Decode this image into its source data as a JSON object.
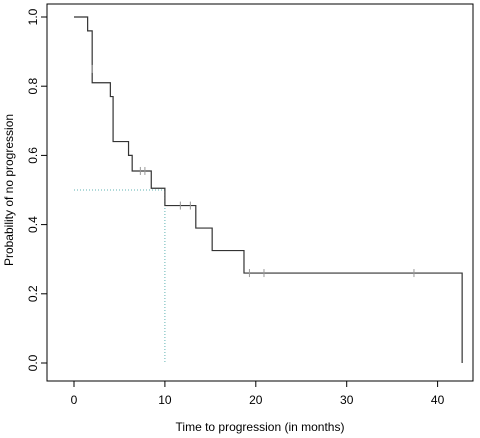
{
  "chart_data": {
    "type": "line",
    "title": "",
    "xlabel": "Time to progression (in months)",
    "ylabel": "Probability of no progression",
    "xlim": [
      0,
      43
    ],
    "ylim": [
      0,
      1
    ],
    "x_ticks": [
      0,
      10,
      20,
      30,
      40
    ],
    "y_ticks": [
      0.0,
      0.2,
      0.4,
      0.6,
      0.8,
      1.0
    ],
    "x_tick_labels": [
      "0",
      "10",
      "20",
      "30",
      "40"
    ],
    "y_tick_labels": [
      "0.0",
      "0.2",
      "0.4",
      "0.6",
      "0.8",
      "1.0"
    ],
    "grid": false,
    "colors": {
      "curve": "#333333",
      "median_line": "#5fb3b3",
      "censor": "#999999"
    },
    "series": [
      {
        "x": [
          0,
          1.5,
          2.0,
          4.0,
          4.3,
          6.0,
          6.4,
          8.5,
          10.0,
          13.4,
          15.2,
          18.7,
          42.7,
          42.7
        ],
        "y": [
          1.0,
          0.96,
          0.81,
          0.77,
          0.64,
          0.6,
          0.555,
          0.505,
          0.455,
          0.39,
          0.325,
          0.26,
          0.26,
          0.0
        ]
      }
    ],
    "censored_points": [
      {
        "x": 2.0,
        "y": 0.85
      },
      {
        "x": 7.3,
        "y": 0.555
      },
      {
        "x": 7.8,
        "y": 0.555
      },
      {
        "x": 11.7,
        "y": 0.455
      },
      {
        "x": 12.8,
        "y": 0.455
      },
      {
        "x": 19.3,
        "y": 0.26
      },
      {
        "x": 20.9,
        "y": 0.26
      },
      {
        "x": 37.4,
        "y": 0.26
      }
    ],
    "median_reference": {
      "x": 10.0,
      "y": 0.5,
      "style": "dotted"
    }
  }
}
